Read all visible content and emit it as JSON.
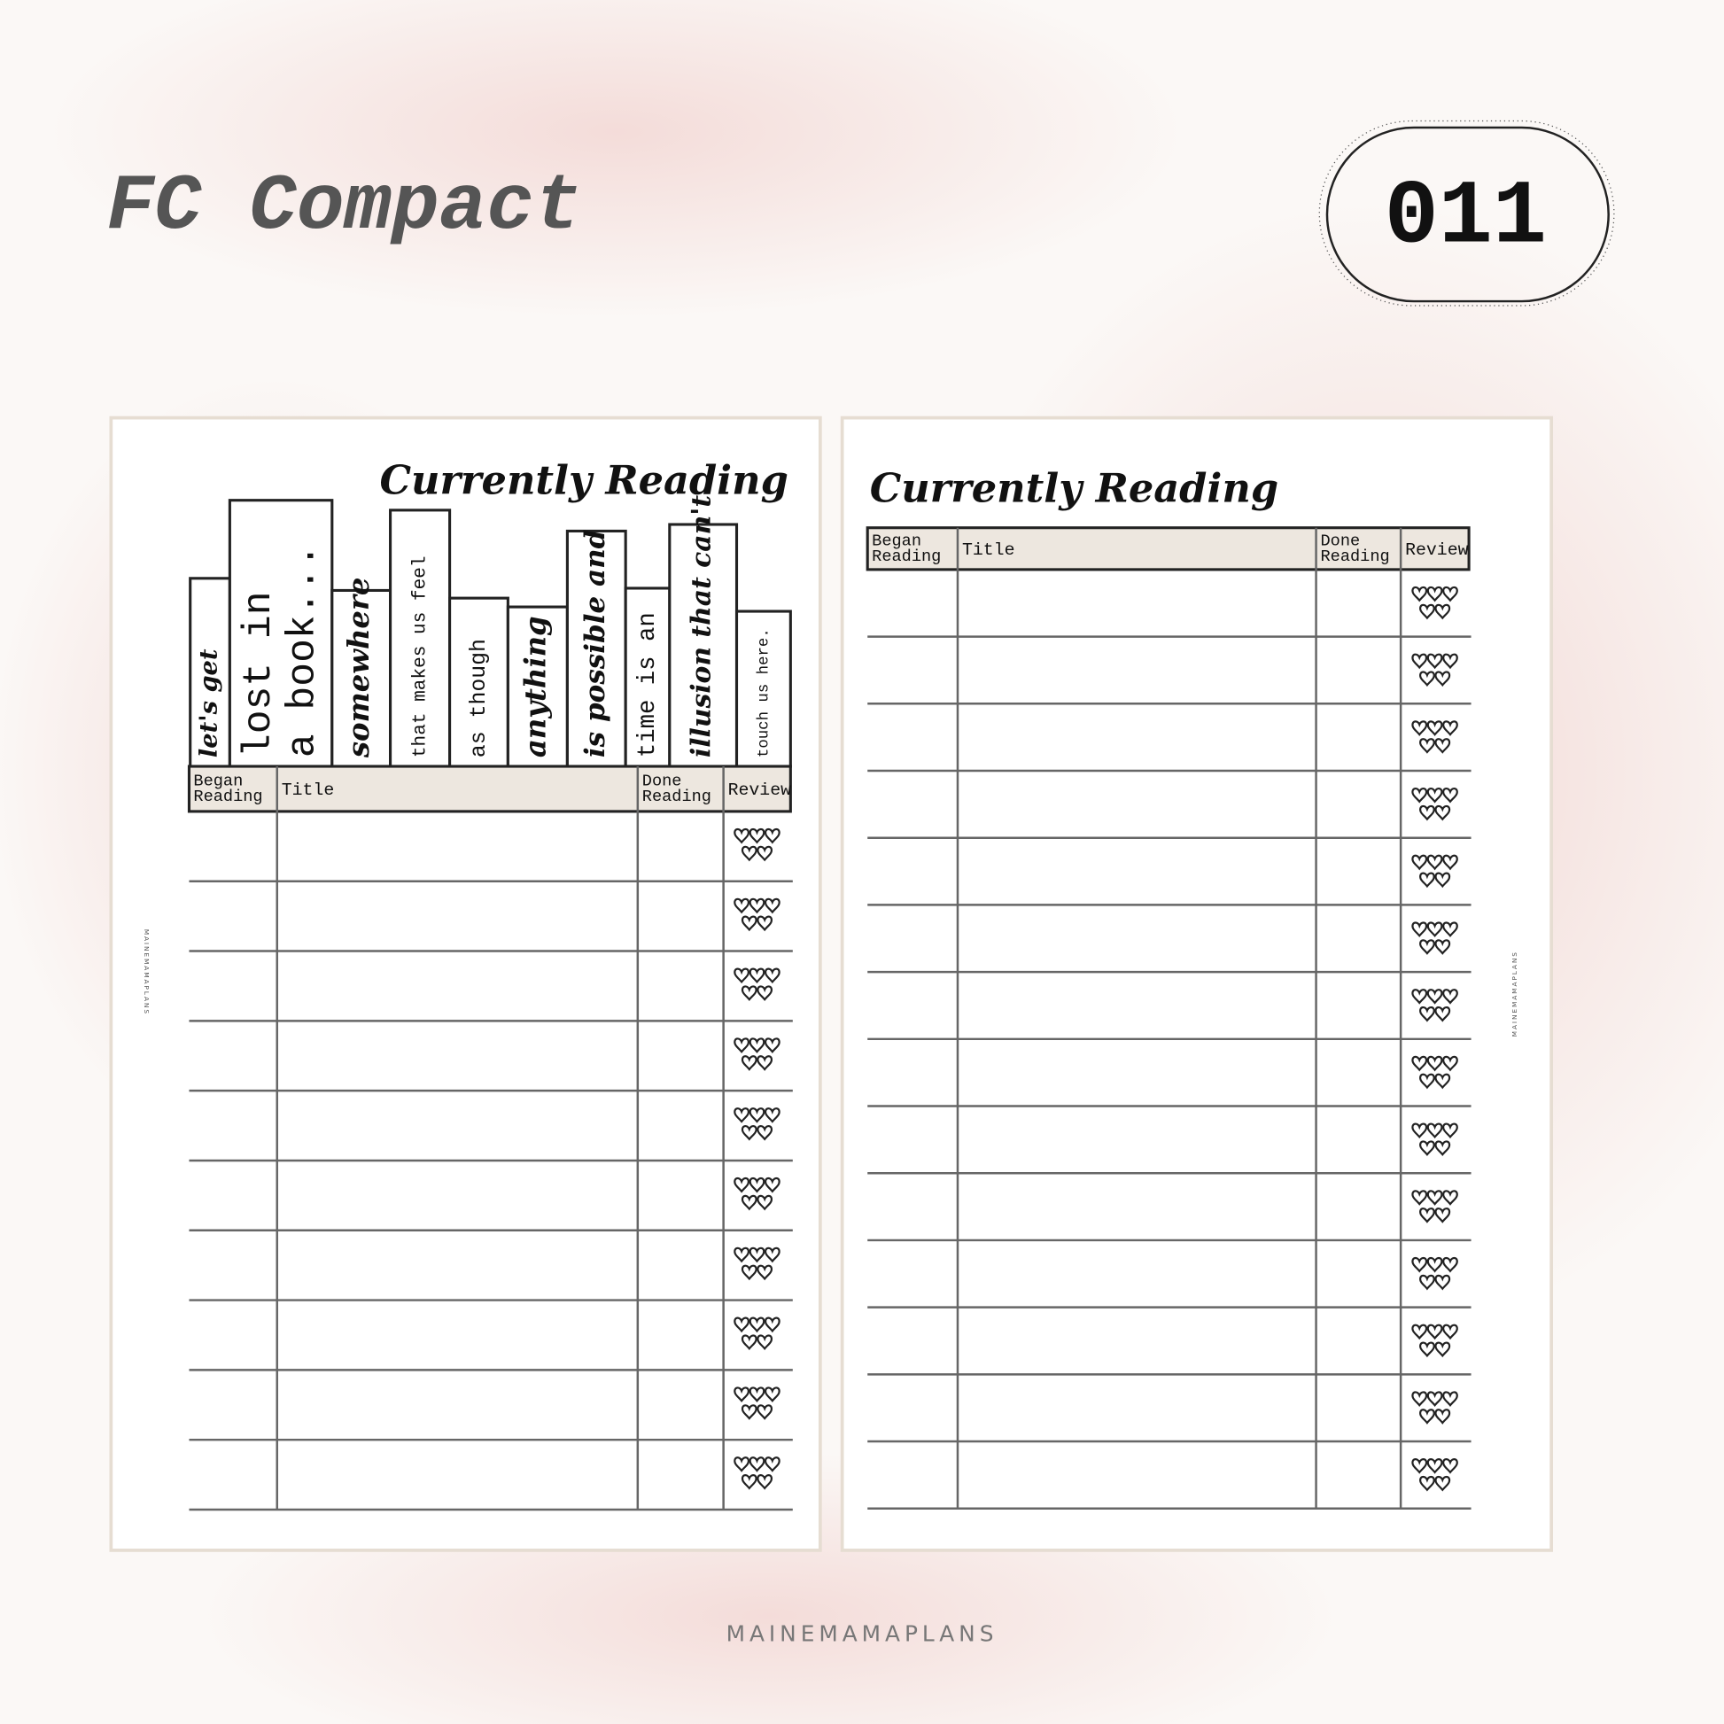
{
  "header": {
    "title": "FC Compact",
    "badge": "011"
  },
  "pages": [
    {
      "title": "Currently Reading",
      "spines": [
        {
          "lines": [
            "let's get"
          ]
        },
        {
          "lines": [
            "lost in",
            "a book..."
          ]
        },
        {
          "lines": [
            "somewhere"
          ]
        },
        {
          "lines": [
            "that makes us feel"
          ]
        },
        {
          "lines": [
            "as though"
          ]
        },
        {
          "lines": [
            "anything"
          ]
        },
        {
          "lines": [
            "is possible and"
          ]
        },
        {
          "lines": [
            "time is an"
          ]
        },
        {
          "lines": [
            "illusion that can't"
          ]
        },
        {
          "lines": [
            "touch us here."
          ]
        }
      ],
      "columns": [
        [
          "Began",
          "Reading"
        ],
        [
          "Title"
        ],
        [
          "Done",
          "Reading"
        ],
        [
          "Review"
        ]
      ],
      "watermark": "MAINEMAMAPLANS"
    },
    {
      "title": "Currently Reading",
      "columns": [
        [
          "Began",
          "Reading"
        ],
        [
          "Title"
        ],
        [
          "Done",
          "Reading"
        ],
        [
          "Review"
        ]
      ],
      "watermark": "MAINEMAMAPLANS"
    }
  ],
  "footer": "MAINEMAMAPLANS"
}
